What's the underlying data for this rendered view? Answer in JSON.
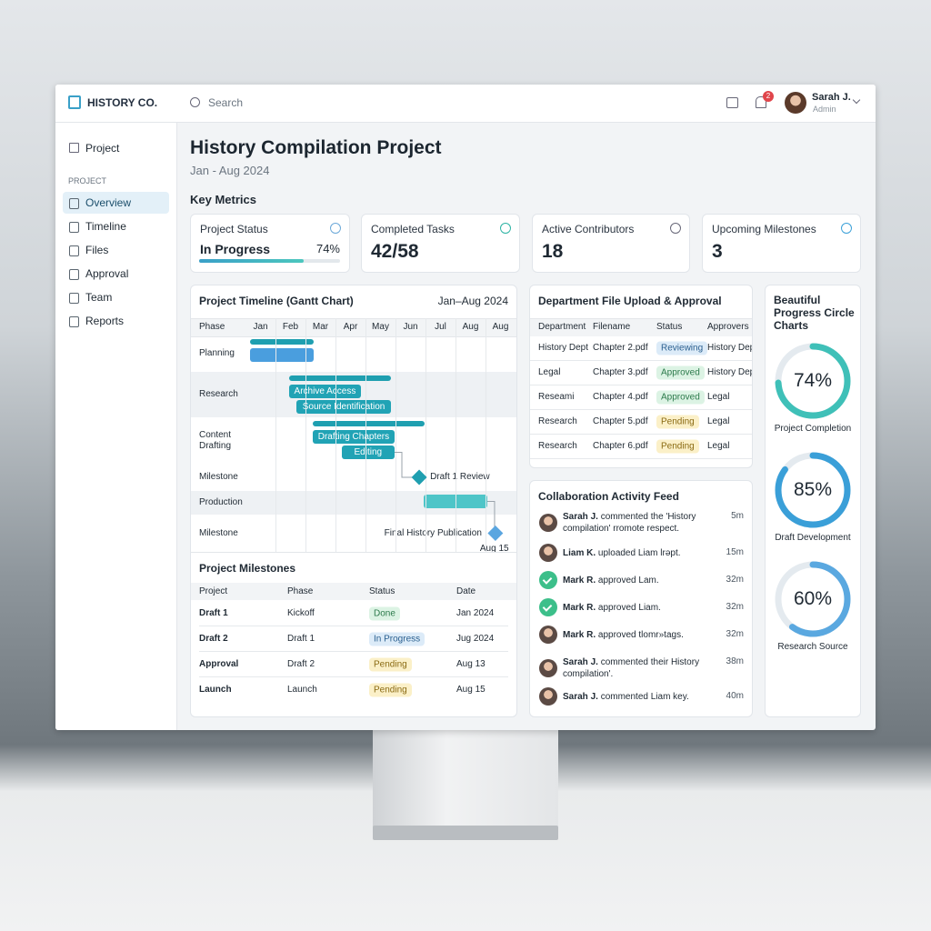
{
  "brand": "HISTORY CO.",
  "search_placeholder": "Search",
  "notification_count": "2",
  "user": {
    "name": "Sarah J.",
    "role": "Admin"
  },
  "sidebar": {
    "home": "Project",
    "section": "PROJECT",
    "items": [
      "Overview",
      "Timeline",
      "Files",
      "Approval",
      "Team",
      "Reports"
    ]
  },
  "header": {
    "title": "History Compilation Project",
    "subtitle": "Jan - Aug 2024"
  },
  "metrics": {
    "title": "Key Metrics",
    "cards": [
      {
        "label": "Project Status",
        "value": "In Progress",
        "progress": 74,
        "progress_label": "74%"
      },
      {
        "label": "Completed Tasks",
        "value": "42/58"
      },
      {
        "label": "Active Contributors",
        "value": "18"
      },
      {
        "label": "Upcoming Milestones",
        "value": "3"
      }
    ]
  },
  "gantt": {
    "title": "Project Timeline (Gantt Chart)",
    "range": "Jan–Aug 2024",
    "phase_header": "Phase",
    "months": [
      "Jan",
      "Feb",
      "Mar",
      "Apr",
      "May",
      "Jun",
      "Jul",
      "Aug",
      "Aug"
    ],
    "rows": [
      {
        "phase": "Planning",
        "bars": [
          {
            "start": 0.15,
            "end": 2.27,
            "style": "summary"
          },
          {
            "start": 0.15,
            "end": 2.27,
            "style": "blue"
          }
        ]
      },
      {
        "phase": "Research",
        "bars": [
          {
            "start": 1.45,
            "end": 4.85,
            "style": "summary"
          },
          {
            "start": 1.45,
            "end": 3.85,
            "style": "teal",
            "label": "Archive Access"
          },
          {
            "start": 1.7,
            "end": 4.85,
            "style": "teal",
            "label": "Source Identification"
          }
        ]
      },
      {
        "phase": "Content Drafting",
        "bars": [
          {
            "start": 2.24,
            "end": 5.97,
            "style": "summary"
          },
          {
            "start": 2.24,
            "end": 4.97,
            "style": "teal",
            "label": "Drafting Chapters"
          },
          {
            "start": 3.2,
            "end": 4.97,
            "style": "teal",
            "label": "Editing"
          }
        ]
      },
      {
        "phase": "Milestone",
        "milestone": {
          "at": 5.79,
          "label": "Draft 1 Review"
        }
      },
      {
        "phase": "Production",
        "bars": [
          {
            "start": 5.94,
            "end": 8.06,
            "style": "light"
          }
        ]
      },
      {
        "phase": "Milestone",
        "milestone": {
          "at": 8.33,
          "label": "Final History Publication",
          "date": "Aug 15"
        }
      }
    ]
  },
  "milestones_table": {
    "title": "Project Milestones",
    "columns": [
      "Project",
      "Phase",
      "Status",
      "Date"
    ],
    "rows": [
      [
        "Draft 1",
        "Kickoff",
        "Done",
        "Jan 2024"
      ],
      [
        "Draft 2",
        "Draft 1",
        "In Progress",
        "Jug 2024"
      ],
      [
        "Approval",
        "Draft 2",
        "Pending",
        "Aug 13"
      ],
      [
        "Launch",
        "Launch",
        "Pending",
        "Aug 15"
      ]
    ]
  },
  "files": {
    "title": "Department File Upload & Approval",
    "columns": [
      "Department",
      "Filename",
      "Status",
      "Approvers"
    ],
    "rows": [
      [
        "History Dept",
        "Chapter 2.pdf",
        "Reviewing",
        "History Dep"
      ],
      [
        "Legal",
        "Chapter 3.pdf",
        "Approved",
        "History Dep"
      ],
      [
        "Reseami",
        "Chapter 4.pdf",
        "Approved",
        "Legal"
      ],
      [
        "Research",
        "Chapter 5.pdf",
        "Pending",
        "Legal"
      ],
      [
        "Research",
        "Chapter 6.pdf",
        "Pending",
        "Legal"
      ]
    ]
  },
  "activity": {
    "title": "Collaboration Activity Feed",
    "items": [
      {
        "name": "Sarah J.",
        "text": "commented the 'History compilation' rromote respect.",
        "time": "5m"
      },
      {
        "name": "Liam K.",
        "text": "uploaded Liam lrəpt.",
        "time": "15m"
      },
      {
        "name": "Mark R.",
        "text": "approved Lam.",
        "time": "32m"
      },
      {
        "name": "Mark R.",
        "text": "approved Liam.",
        "time": "32m"
      },
      {
        "name": "Mark R.",
        "text": "approved tlomr»tags.",
        "time": "32m"
      },
      {
        "name": "Sarah J.",
        "text": "commented their History compilation'.",
        "time": "38m"
      },
      {
        "name": "Sarah J.",
        "text": "commented Liam key.",
        "time": "40m"
      }
    ]
  },
  "progress": {
    "title": "Beautiful Progress Circle Charts",
    "circles": [
      {
        "value": 74,
        "value_label": "74%",
        "label": "Project Completion"
      },
      {
        "value": 85,
        "value_label": "85%",
        "label": "Draft Development"
      },
      {
        "value": 60,
        "value_label": "60%",
        "label": "Research Source"
      }
    ]
  }
}
